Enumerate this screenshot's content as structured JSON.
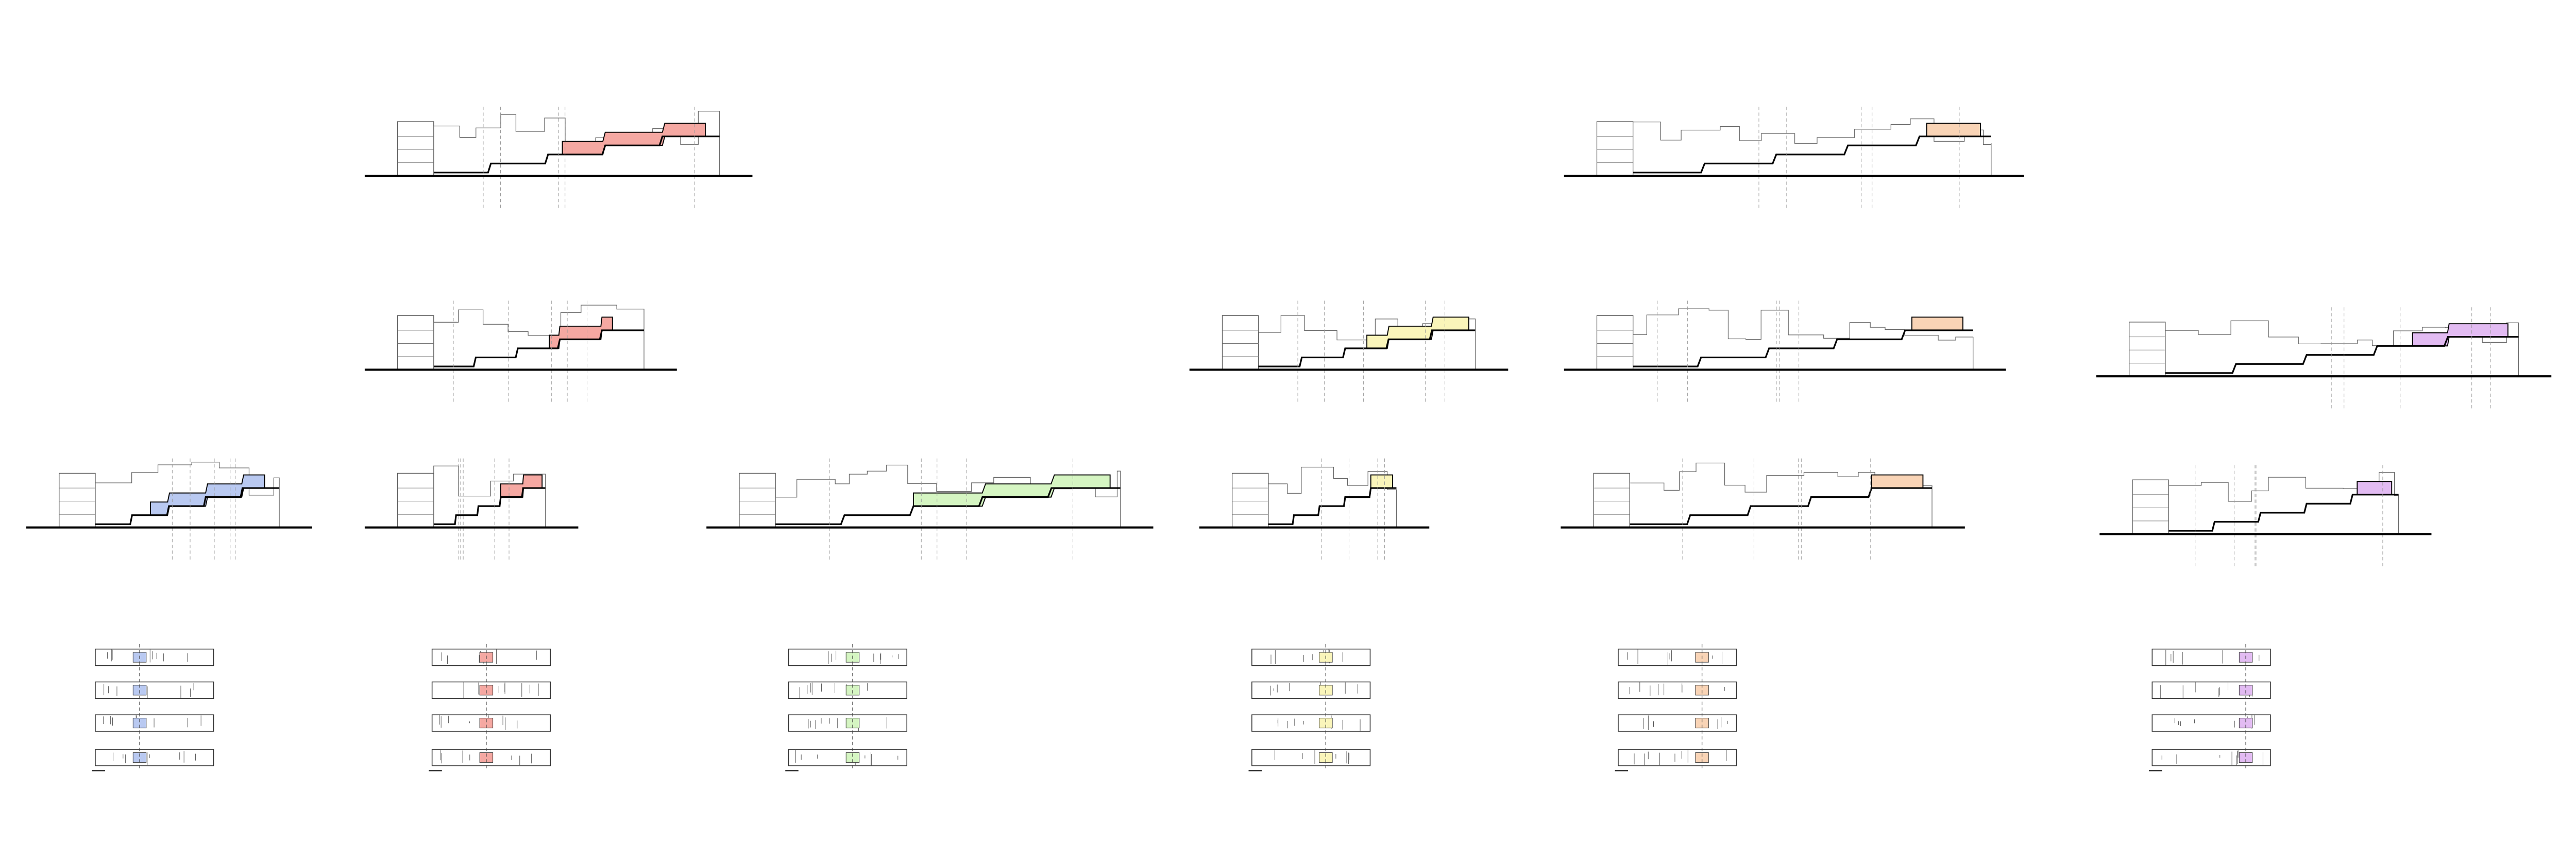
{
  "groups": [
    {
      "color": "#b9c9f1"
    },
    {
      "color": "#f5a8a2"
    },
    {
      "color": "#d5f5c2"
    },
    {
      "color": "#faf5ba"
    },
    {
      "color": "#f9d4b6"
    },
    {
      "color": "#e2bbf2"
    }
  ]
}
